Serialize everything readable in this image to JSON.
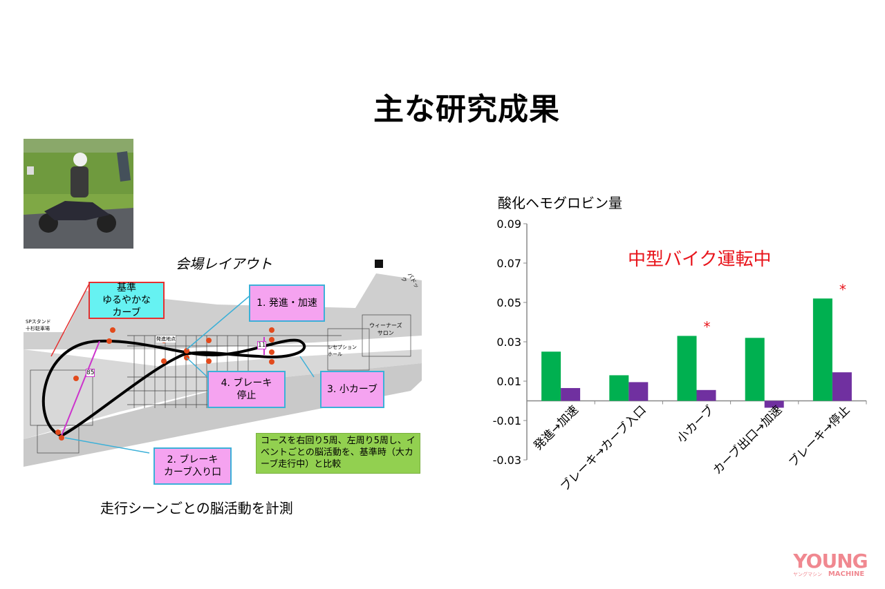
{
  "slide": {
    "title": "主な研究成果",
    "caption": "走行シーンごとの脳活動を計測"
  },
  "layout_diagram": {
    "title": "会場レイアウト",
    "boxes": {
      "baseline": "基準\nゆるやかな\nカーブ",
      "start_accel": "1. 発進・加速",
      "brake_curve_entry": "2. ブレーキ\nカーブ入り口",
      "small_curve": "3. 小カーブ",
      "brake_stop": "4. ブレーキ\n停止"
    },
    "note": "コースを右回り5周、左周り5周し、イベントごとの脳活動を、基準時（大カーブ走行中）と比較",
    "map_labels": {
      "sp_stand": "SPスタンド\n十杉駐車場",
      "paddock": "パドック",
      "wieners_salon": "ウィーナーズ\nサロン",
      "reception_hall": "レセプション\nホール",
      "start_point": "発進地点",
      "dist_85": "85",
      "dist_11": "11"
    }
  },
  "chart_data": {
    "type": "bar",
    "title": "酸化ヘモグロビン量",
    "annotation": "中型バイク運転中",
    "categories": [
      "発進→加速",
      "ブレーキ→カーブ入口",
      "小カーブ",
      "カーブ出口→加速",
      "ブレーキ→停止"
    ],
    "series": [
      {
        "color": "#00b050",
        "values": [
          0.025,
          0.013,
          0.033,
          0.032,
          0.052
        ]
      },
      {
        "color": "#7030a0",
        "values": [
          0.0065,
          0.0095,
          0.0055,
          -0.0035,
          0.0145
        ]
      }
    ],
    "significance": [
      "",
      "",
      "*",
      "",
      "*"
    ],
    "ylim": [
      -0.03,
      0.09
    ],
    "yticks": [
      "0.09",
      "0.07",
      "0.05",
      "0.03",
      "0.01",
      "-0.01",
      "-0.03"
    ],
    "grid": false,
    "legend": "none"
  },
  "logo": {
    "text": "YOUNG MACHINE",
    "sub": "ヤングマシン"
  }
}
